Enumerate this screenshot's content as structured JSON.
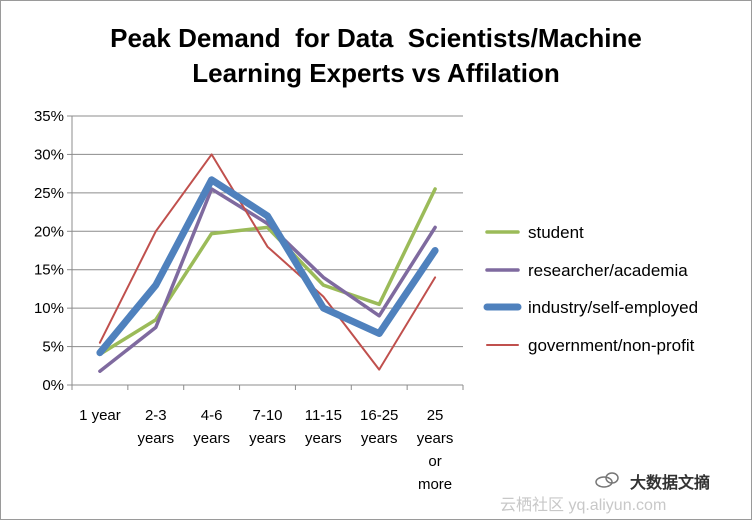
{
  "chart_data": {
    "type": "line",
    "title_lines": [
      "Peak Demand  for Data  Scientists/Machine",
      "Learning Experts vs Affilation"
    ],
    "xlabel": "",
    "ylabel": "",
    "categories": [
      [
        "1 year"
      ],
      [
        "2-3",
        "years"
      ],
      [
        "4-6",
        "years"
      ],
      [
        "7-10",
        "years"
      ],
      [
        "11-15",
        "years"
      ],
      [
        "16-25",
        "years"
      ],
      [
        "25",
        "years",
        "or",
        "more"
      ]
    ],
    "y_ticks": [
      "0%",
      "5%",
      "10%",
      "15%",
      "20%",
      "25%",
      "30%",
      "35%"
    ],
    "ylim": [
      0,
      35
    ],
    "grid": true,
    "legend_position": "right",
    "series": [
      {
        "name": "student",
        "color": "#9bbb59",
        "weight": "medium",
        "values": [
          4,
          8.5,
          19.7,
          20.5,
          13,
          10.5,
          25.5
        ]
      },
      {
        "name": "researcher/academia",
        "color": "#7f6a9f",
        "weight": "medium",
        "values": [
          1.8,
          7.5,
          25.5,
          21,
          14,
          9,
          20.5
        ]
      },
      {
        "name": "industry/self-employed",
        "color": "#4f81bd",
        "weight": "thick",
        "values": [
          4.2,
          13,
          26.7,
          22,
          10,
          6.7,
          17.5
        ]
      },
      {
        "name": "government/non-profit",
        "color": "#c0504d",
        "weight": "thin",
        "values": [
          5.5,
          20,
          30,
          18,
          11.5,
          2,
          14
        ]
      }
    ]
  },
  "watermark": {
    "icon": "cloud-icon",
    "text_left": "云栖社区 yq.aliyun.com",
    "text_right": "大数据文摘"
  }
}
